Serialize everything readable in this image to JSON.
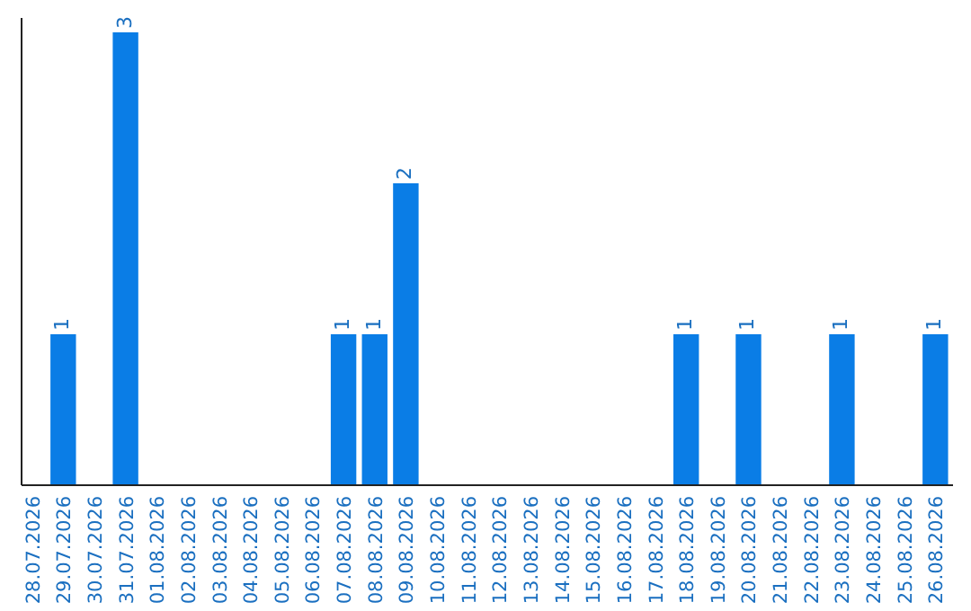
{
  "chart_data": {
    "type": "bar",
    "categories": [
      "28.07.2026",
      "29.07.2026",
      "30.07.2026",
      "31.07.2026",
      "01.08.2026",
      "02.08.2026",
      "03.08.2026",
      "04.08.2026",
      "05.08.2026",
      "06.08.2026",
      "07.08.2026",
      "08.08.2026",
      "09.08.2026",
      "10.08.2026",
      "11.08.2026",
      "12.08.2026",
      "13.08.2026",
      "14.08.2026",
      "15.08.2026",
      "16.08.2026",
      "17.08.2026",
      "18.08.2026",
      "19.08.2026",
      "20.08.2026",
      "21.08.2026",
      "22.08.2026",
      "23.08.2026",
      "24.08.2026",
      "25.08.2026",
      "26.08.2026"
    ],
    "values": [
      0,
      1,
      0,
      3,
      0,
      0,
      0,
      0,
      0,
      0,
      1,
      1,
      2,
      0,
      0,
      0,
      0,
      0,
      0,
      0,
      0,
      1,
      0,
      1,
      0,
      0,
      1,
      0,
      0,
      1
    ],
    "value_labels": [
      null,
      "1",
      null,
      "3",
      null,
      null,
      null,
      null,
      null,
      null,
      "1",
      "1",
      "2",
      null,
      null,
      null,
      null,
      null,
      null,
      null,
      null,
      "1",
      null,
      "1",
      null,
      null,
      "1",
      null,
      null,
      "1"
    ],
    "color": "#0a7de6",
    "grid": false
  }
}
